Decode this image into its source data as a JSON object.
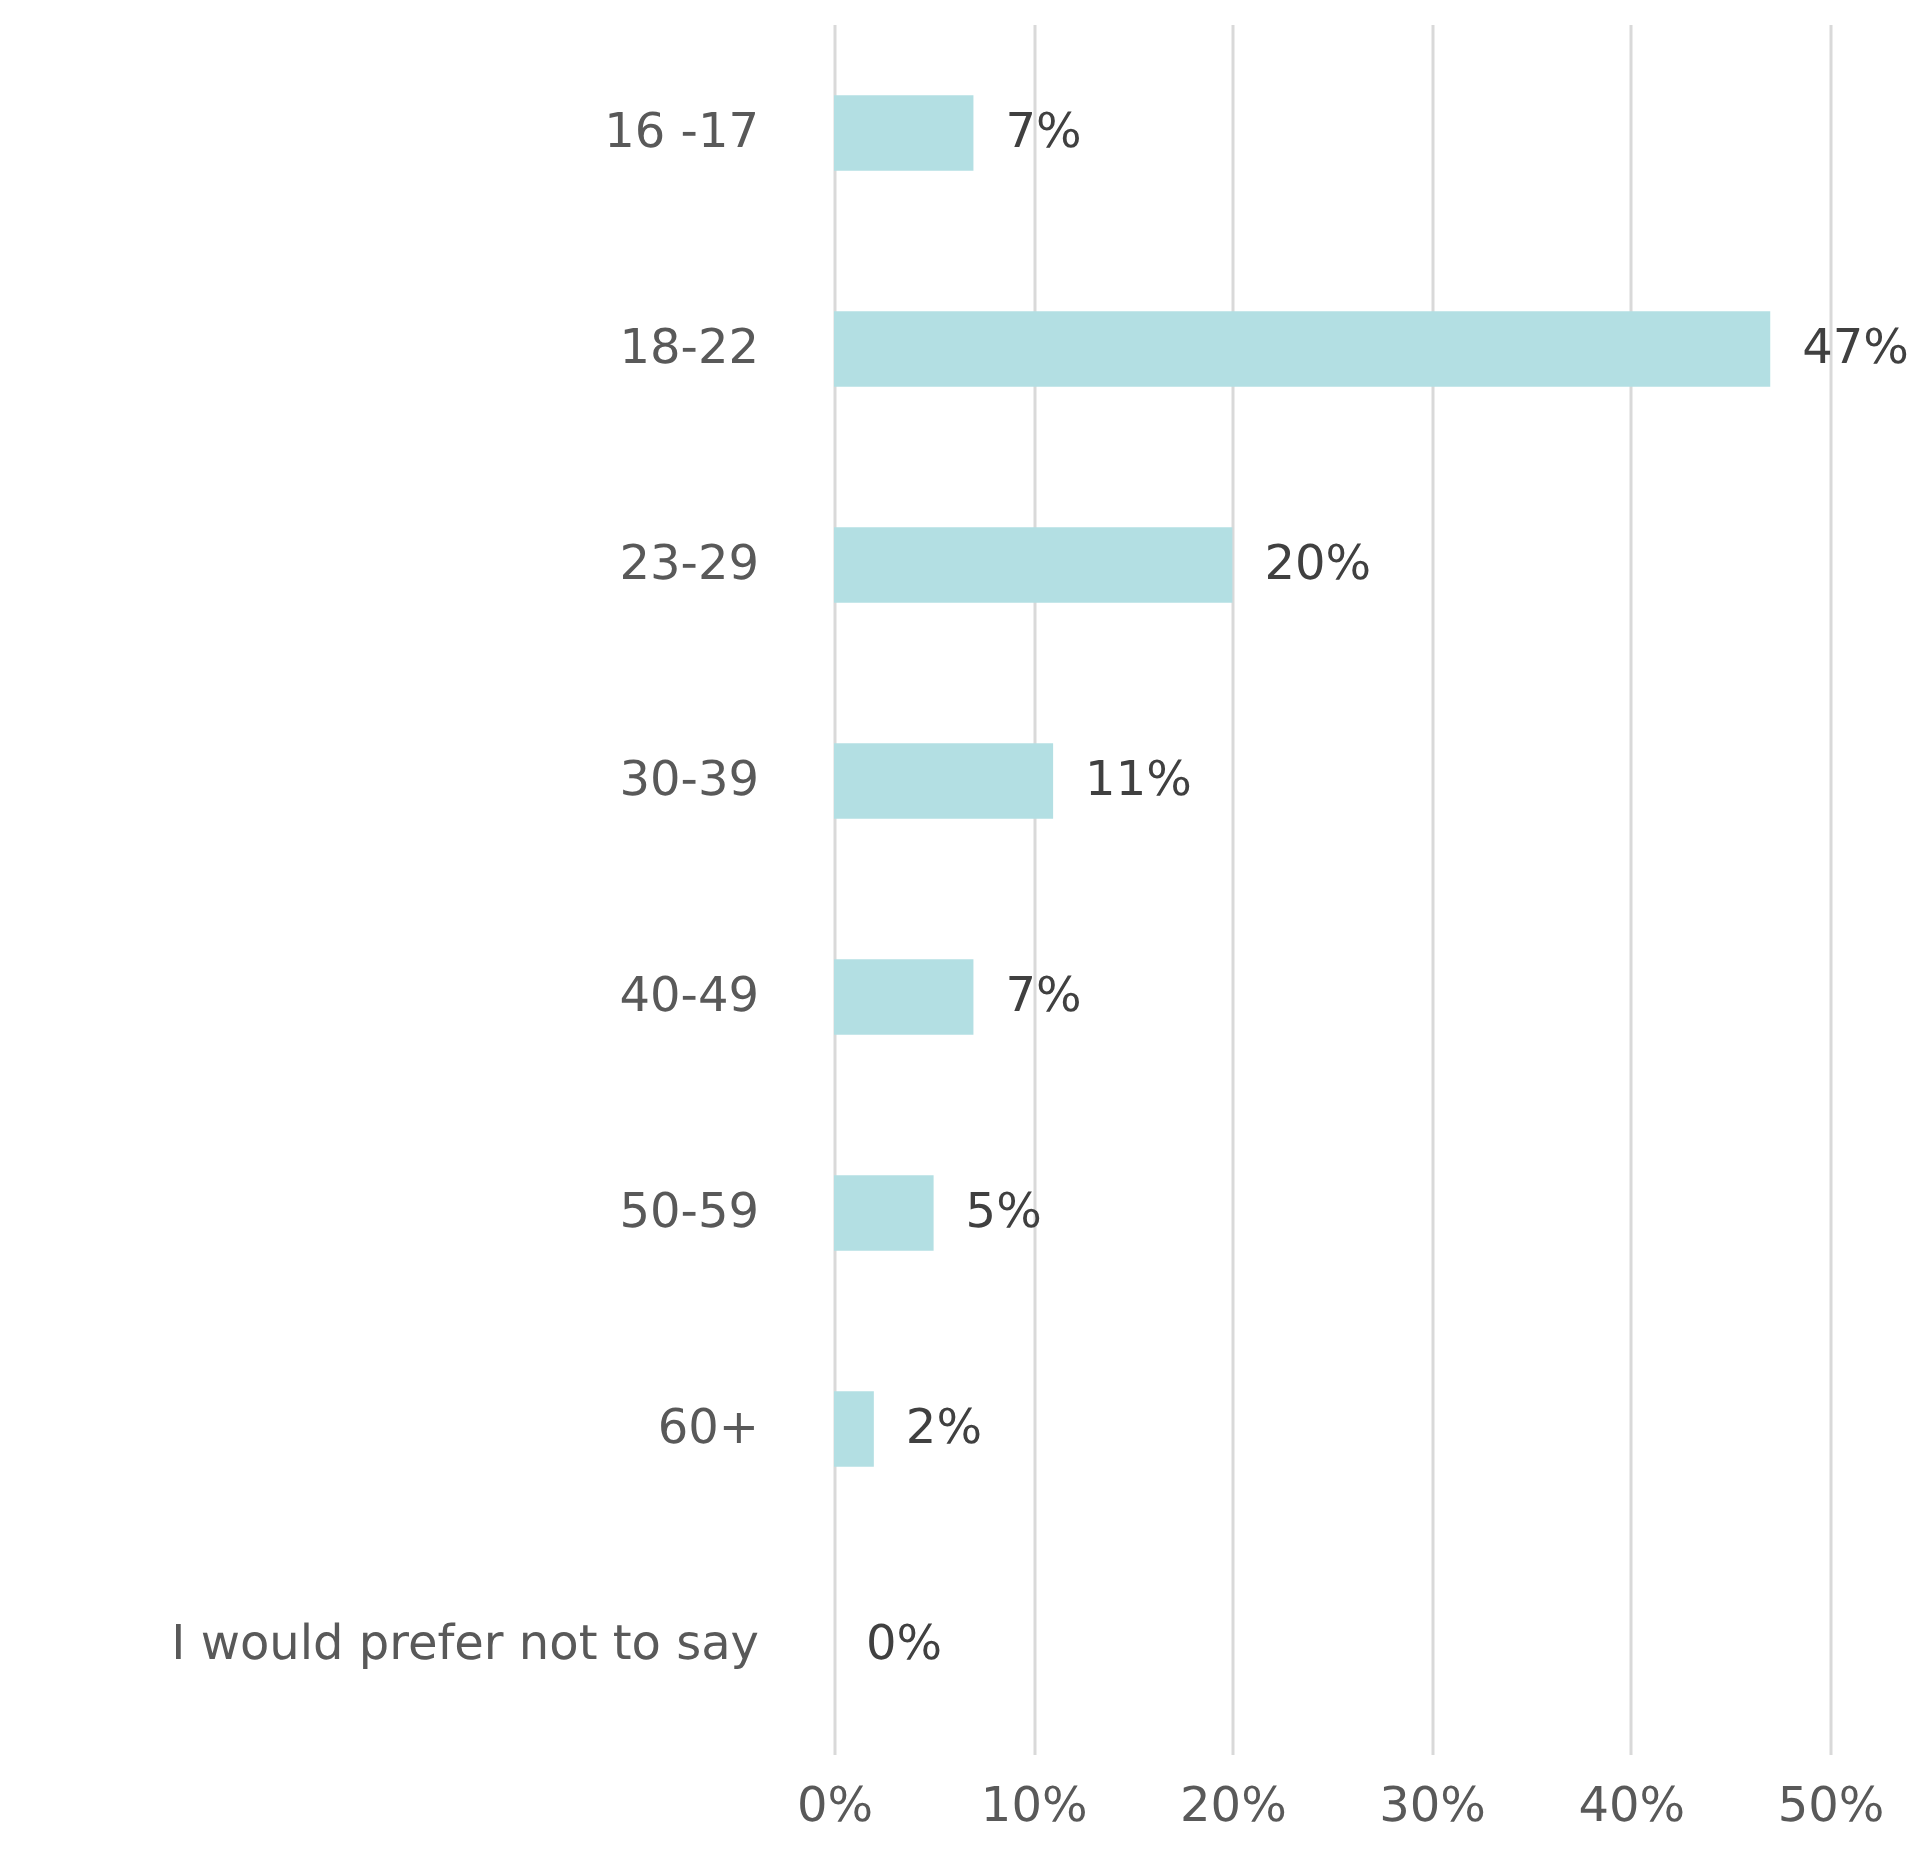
{
  "chart_data": {
    "type": "bar",
    "orientation": "horizontal",
    "categories": [
      "16 -17",
      "18-22",
      "23-29",
      "30-39",
      "40-49",
      "50-59",
      "60+",
      "I would prefer not to say"
    ],
    "values": [
      7,
      47,
      20,
      11,
      7,
      5,
      2,
      0
    ],
    "value_labels": [
      "7%",
      "47%",
      "20%",
      "11%",
      "7%",
      "5%",
      "2%",
      "0%"
    ],
    "color": "#b3dfe3",
    "xlim": [
      0,
      50
    ],
    "xticks": [
      {
        "value": 0,
        "label": "0%"
      },
      {
        "value": 10,
        "label": "10%"
      },
      {
        "value": 20,
        "label": "20%"
      },
      {
        "value": 30,
        "label": "30%"
      },
      {
        "value": 40,
        "label": "40%"
      },
      {
        "value": 50,
        "label": "50%"
      }
    ],
    "grid": "x"
  }
}
